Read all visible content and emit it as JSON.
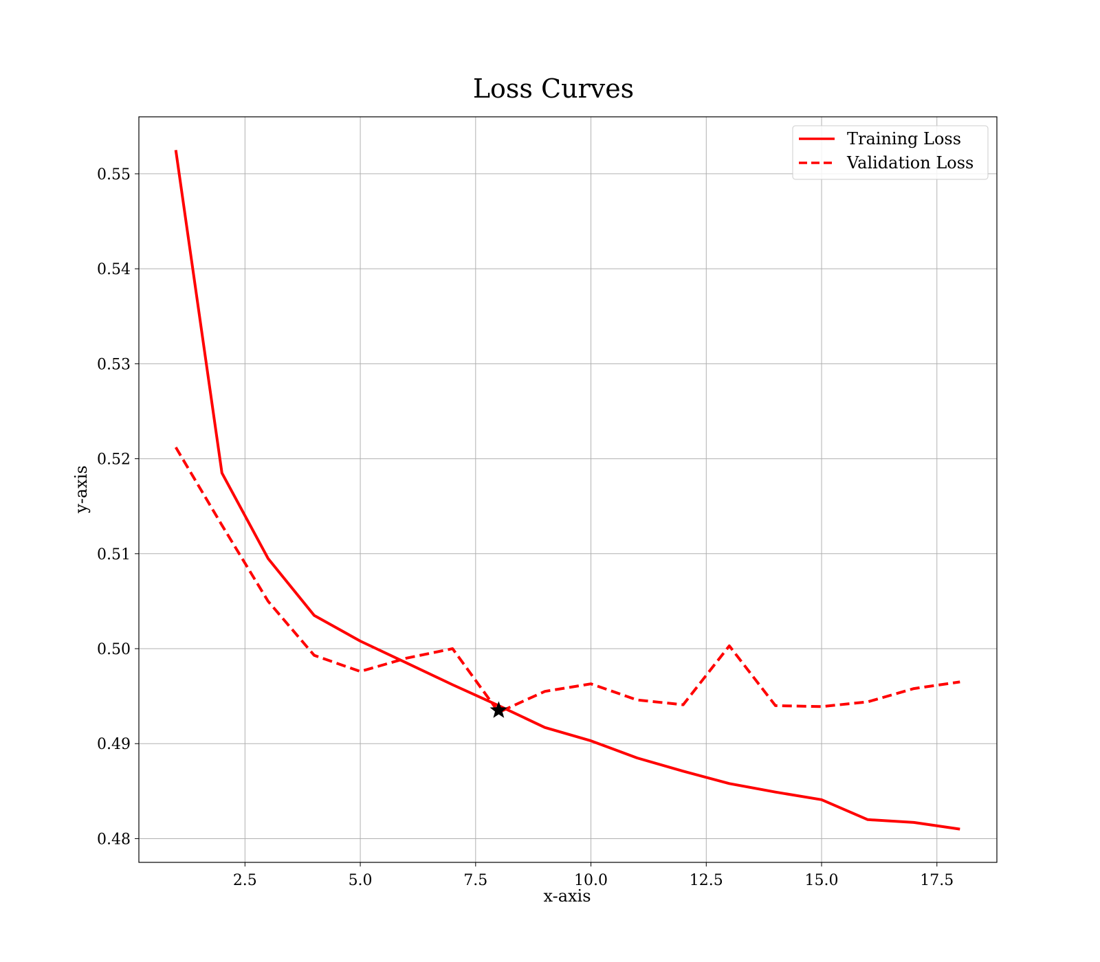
{
  "chart_data": {
    "type": "line",
    "title": "Loss Curves",
    "xlabel": "x-axis",
    "ylabel": "y-axis",
    "xlim": [
      0.2,
      18.8
    ],
    "ylim": [
      0.4775,
      0.556
    ],
    "xticks": [
      2.5,
      5.0,
      7.5,
      10.0,
      12.5,
      15.0,
      17.5
    ],
    "xtick_labels": [
      "2.5",
      "5.0",
      "7.5",
      "10.0",
      "12.5",
      "15.0",
      "17.5"
    ],
    "yticks": [
      0.48,
      0.49,
      0.5,
      0.51,
      0.52,
      0.53,
      0.54,
      0.55
    ],
    "ytick_labels": [
      "0.48",
      "0.49",
      "0.50",
      "0.51",
      "0.52",
      "0.53",
      "0.54",
      "0.55"
    ],
    "grid": true,
    "legend_position": "top-right",
    "x": [
      1,
      2,
      3,
      4,
      5,
      6,
      7,
      8,
      9,
      10,
      11,
      12,
      13,
      14,
      15,
      16,
      17,
      18
    ],
    "series": [
      {
        "name": "Training Loss",
        "color": "#ff0000",
        "style": "solid",
        "values": [
          0.5525,
          0.5185,
          0.5095,
          0.5035,
          0.5008,
          0.4985,
          0.4962,
          0.494,
          0.4917,
          0.4903,
          0.4885,
          0.4871,
          0.4858,
          0.4849,
          0.4841,
          0.482,
          0.4817,
          0.481
        ]
      },
      {
        "name": "Validation Loss",
        "color": "#ff0000",
        "style": "dashed",
        "values": [
          0.5212,
          0.513,
          0.505,
          0.4993,
          0.4976,
          0.499,
          0.5,
          0.4933,
          0.4955,
          0.4963,
          0.4946,
          0.4941,
          0.5003,
          0.494,
          0.4939,
          0.4944,
          0.4958,
          0.4965
        ]
      }
    ],
    "marker": {
      "x": 8,
      "y": 0.4935,
      "shape": "star",
      "color": "#000000"
    }
  }
}
